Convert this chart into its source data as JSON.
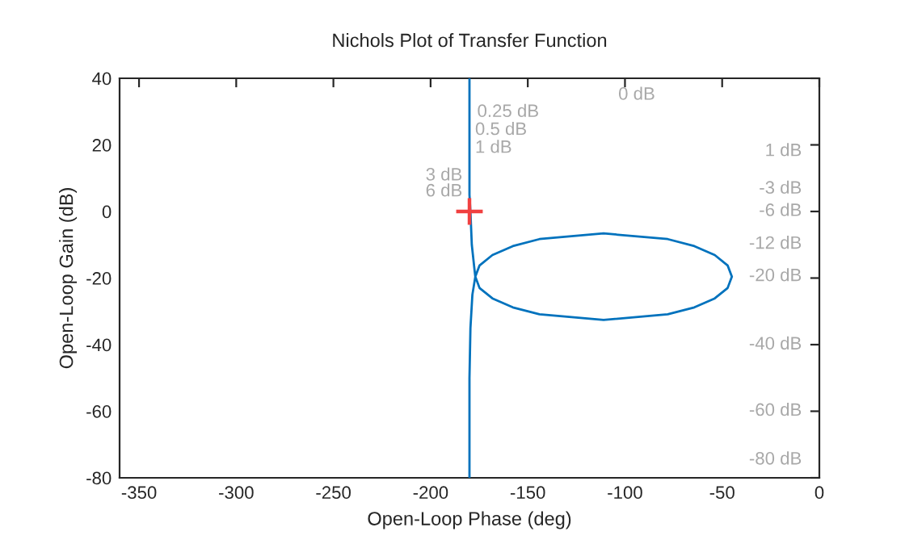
{
  "chart_data": {
    "type": "line",
    "title": "Nichols Plot of Transfer Function",
    "xlabel": "Open-Loop Phase (deg)",
    "ylabel": "Open-Loop Gain (dB)",
    "xlim": [
      -360,
      0
    ],
    "ylim": [
      -80,
      40
    ],
    "xticks": [
      -350,
      -300,
      -250,
      -200,
      -150,
      -100,
      -50,
      0
    ],
    "yticks": [
      -80,
      -60,
      -40,
      -20,
      0,
      20,
      40
    ],
    "grid": false,
    "series": [
      {
        "color": "#0072bd",
        "x": [
          -180,
          -180,
          -180,
          -179.5,
          -178.8,
          -177.5,
          -177,
          -174.8,
          -168.2,
          -157.7,
          -144,
          -111,
          -78,
          -64.3,
          -53.8,
          -47.2,
          -45,
          -47.2,
          -53.8,
          -64.3,
          -78,
          -111,
          -144,
          -157.7,
          -168.2,
          -174.8,
          -177,
          -178.5,
          -179.5,
          -180,
          -180
        ],
        "values": [
          40,
          20,
          5,
          0,
          -10,
          -17,
          -19.6,
          -16.2,
          -13.1,
          -10.4,
          -8.3,
          -6.6,
          -8.3,
          -10.4,
          -13.1,
          -16.2,
          -19.6,
          -23.0,
          -26.1,
          -28.8,
          -30.9,
          -32.6,
          -30.9,
          -28.8,
          -26.1,
          -23.0,
          -19.6,
          -25,
          -35,
          -50,
          -80
        ]
      },
      {
        "type": "scatter",
        "color": "#f04040",
        "marker": "plus",
        "x": [
          -180
        ],
        "values": [
          0
        ]
      }
    ],
    "annotations": [
      "0 dB",
      "0.25 dB",
      "0.5 dB",
      "1 dB",
      "3 dB",
      "6 dB",
      "1 dB",
      "-3 dB",
      "-6 dB",
      "-12 dB",
      "-20 dB",
      "-40 dB",
      "-60 dB",
      "-80 dB"
    ]
  }
}
